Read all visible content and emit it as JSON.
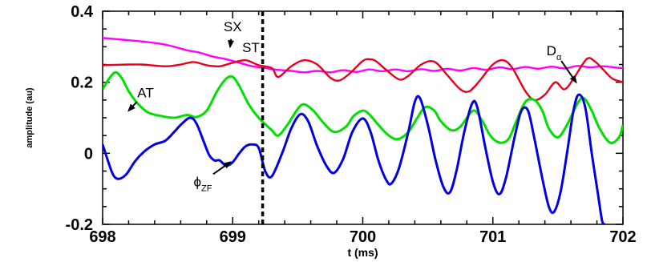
{
  "chart_data": {
    "type": "line",
    "xlabel": "t (ms)",
    "ylabel": "amplitude (au)",
    "xlim": [
      698,
      702
    ],
    "ylim": [
      -0.2,
      0.4
    ],
    "x_ticks": [
      698,
      699,
      700,
      701,
      702
    ],
    "y_ticks": [
      -0.2,
      0,
      0.2,
      0.4
    ],
    "x_tick_labels": [
      "698",
      "699",
      "700",
      "701",
      "702"
    ],
    "y_tick_labels": [
      "-0.2",
      "0",
      "0.2",
      "0.4"
    ],
    "grid": false,
    "legend": "none",
    "series": [
      {
        "id": "sx",
        "color": "#ff00ff",
        "points": [
          [
            698.0,
            0.325
          ],
          [
            698.15,
            0.32
          ],
          [
            698.3,
            0.315
          ],
          [
            698.45,
            0.308
          ],
          [
            698.55,
            0.3
          ],
          [
            698.65,
            0.29
          ],
          [
            698.75,
            0.283
          ],
          [
            698.85,
            0.272
          ],
          [
            698.95,
            0.265
          ],
          [
            699.05,
            0.255
          ],
          [
            699.15,
            0.245
          ],
          [
            699.25,
            0.24
          ],
          [
            699.35,
            0.235
          ],
          [
            699.45,
            0.232
          ],
          [
            699.55,
            0.228
          ],
          [
            699.65,
            0.232
          ],
          [
            699.75,
            0.228
          ],
          [
            699.85,
            0.234
          ],
          [
            699.95,
            0.229
          ],
          [
            700.05,
            0.236
          ],
          [
            700.15,
            0.231
          ],
          [
            700.25,
            0.236
          ],
          [
            700.35,
            0.231
          ],
          [
            700.45,
            0.237
          ],
          [
            700.55,
            0.232
          ],
          [
            700.65,
            0.238
          ],
          [
            700.75,
            0.233
          ],
          [
            700.85,
            0.24
          ],
          [
            700.95,
            0.235
          ],
          [
            701.05,
            0.242
          ],
          [
            701.15,
            0.237
          ],
          [
            701.25,
            0.243
          ],
          [
            701.35,
            0.238
          ],
          [
            701.45,
            0.244
          ],
          [
            701.55,
            0.239
          ],
          [
            701.65,
            0.246
          ],
          [
            701.75,
            0.242
          ],
          [
            701.85,
            0.245
          ],
          [
            701.95,
            0.241
          ],
          [
            702.0,
            0.24
          ]
        ]
      },
      {
        "id": "d_alpha",
        "color": "#e8001c",
        "points": [
          [
            698.0,
            0.248
          ],
          [
            698.1,
            0.249
          ],
          [
            698.2,
            0.25
          ],
          [
            698.3,
            0.25
          ],
          [
            698.4,
            0.247
          ],
          [
            698.5,
            0.245
          ],
          [
            698.6,
            0.25
          ],
          [
            698.7,
            0.257
          ],
          [
            698.8,
            0.248
          ],
          [
            698.9,
            0.245
          ],
          [
            699.0,
            0.255
          ],
          [
            699.1,
            0.262
          ],
          [
            699.2,
            0.248
          ],
          [
            699.3,
            0.24
          ],
          [
            699.35,
            0.215
          ],
          [
            699.45,
            0.245
          ],
          [
            699.55,
            0.262
          ],
          [
            699.65,
            0.25
          ],
          [
            699.75,
            0.213
          ],
          [
            699.82,
            0.205
          ],
          [
            699.9,
            0.225
          ],
          [
            700.0,
            0.26
          ],
          [
            700.05,
            0.265
          ],
          [
            700.1,
            0.26
          ],
          [
            700.18,
            0.235
          ],
          [
            700.28,
            0.208
          ],
          [
            700.35,
            0.218
          ],
          [
            700.45,
            0.25
          ],
          [
            700.55,
            0.258
          ],
          [
            700.65,
            0.22
          ],
          [
            700.75,
            0.18
          ],
          [
            700.82,
            0.175
          ],
          [
            700.9,
            0.205
          ],
          [
            701.0,
            0.25
          ],
          [
            701.08,
            0.262
          ],
          [
            701.15,
            0.24
          ],
          [
            701.25,
            0.175
          ],
          [
            701.32,
            0.15
          ],
          [
            701.4,
            0.165
          ],
          [
            701.48,
            0.2
          ],
          [
            701.55,
            0.18
          ],
          [
            701.62,
            0.21
          ],
          [
            701.72,
            0.265
          ],
          [
            701.78,
            0.26
          ],
          [
            701.85,
            0.235
          ],
          [
            701.92,
            0.21
          ],
          [
            702.0,
            0.2
          ]
        ]
      },
      {
        "id": "at",
        "color": "#00e000",
        "points": [
          [
            698.0,
            0.18
          ],
          [
            698.05,
            0.21
          ],
          [
            698.1,
            0.228
          ],
          [
            698.15,
            0.21
          ],
          [
            698.2,
            0.175
          ],
          [
            698.27,
            0.14
          ],
          [
            698.35,
            0.115
          ],
          [
            698.45,
            0.105
          ],
          [
            698.55,
            0.1
          ],
          [
            698.65,
            0.108
          ],
          [
            698.72,
            0.102
          ],
          [
            698.8,
            0.12
          ],
          [
            698.88,
            0.175
          ],
          [
            698.95,
            0.21
          ],
          [
            699.0,
            0.215
          ],
          [
            699.05,
            0.19
          ],
          [
            699.12,
            0.14
          ],
          [
            699.2,
            0.1
          ],
          [
            699.3,
            0.065
          ],
          [
            699.35,
            0.05
          ],
          [
            699.42,
            0.08
          ],
          [
            699.5,
            0.125
          ],
          [
            699.55,
            0.138
          ],
          [
            699.62,
            0.12
          ],
          [
            699.7,
            0.085
          ],
          [
            699.78,
            0.06
          ],
          [
            699.87,
            0.075
          ],
          [
            699.93,
            0.105
          ],
          [
            700.0,
            0.12
          ],
          [
            700.05,
            0.11
          ],
          [
            700.12,
            0.08
          ],
          [
            700.2,
            0.05
          ],
          [
            700.27,
            0.04
          ],
          [
            700.35,
            0.06
          ],
          [
            700.42,
            0.1
          ],
          [
            700.48,
            0.13
          ],
          [
            700.55,
            0.12
          ],
          [
            700.6,
            0.09
          ],
          [
            700.68,
            0.065
          ],
          [
            700.75,
            0.075
          ],
          [
            700.85,
            0.12
          ],
          [
            700.92,
            0.09
          ],
          [
            700.98,
            0.05
          ],
          [
            701.05,
            0.03
          ],
          [
            701.12,
            0.04
          ],
          [
            701.18,
            0.09
          ],
          [
            701.25,
            0.145
          ],
          [
            701.32,
            0.15
          ],
          [
            701.38,
            0.12
          ],
          [
            701.43,
            0.07
          ],
          [
            701.5,
            0.045
          ],
          [
            701.57,
            0.08
          ],
          [
            701.65,
            0.14
          ],
          [
            701.7,
            0.155
          ],
          [
            701.76,
            0.12
          ],
          [
            701.82,
            0.07
          ],
          [
            701.9,
            0.03
          ],
          [
            701.97,
            0.045
          ],
          [
            702.0,
            0.08
          ]
        ]
      },
      {
        "id": "phi_zf",
        "color": "#0000e0",
        "points": [
          [
            698.0,
            0.025
          ],
          [
            698.04,
            -0.02
          ],
          [
            698.08,
            -0.06
          ],
          [
            698.12,
            -0.072
          ],
          [
            698.18,
            -0.06
          ],
          [
            698.25,
            -0.022
          ],
          [
            698.32,
            0.005
          ],
          [
            698.4,
            0.025
          ],
          [
            698.48,
            0.035
          ],
          [
            698.55,
            0.06
          ],
          [
            698.6,
            0.08
          ],
          [
            698.67,
            0.1
          ],
          [
            698.72,
            0.085
          ],
          [
            698.78,
            0.03
          ],
          [
            698.82,
            -0.005
          ],
          [
            698.86,
            -0.02
          ],
          [
            698.9,
            -0.02
          ],
          [
            698.95,
            -0.035
          ],
          [
            699.0,
            -0.025
          ],
          [
            699.05,
            0.0
          ],
          [
            699.1,
            0.02
          ],
          [
            699.15,
            0.025
          ],
          [
            699.2,
            0.015
          ],
          [
            699.25,
            -0.05
          ],
          [
            699.3,
            -0.065
          ],
          [
            699.38,
            0.0
          ],
          [
            699.45,
            0.07
          ],
          [
            699.52,
            0.11
          ],
          [
            699.58,
            0.09
          ],
          [
            699.65,
            0.02
          ],
          [
            699.72,
            -0.035
          ],
          [
            699.78,
            -0.055
          ],
          [
            699.85,
            -0.015
          ],
          [
            699.92,
            0.06
          ],
          [
            700.0,
            0.098
          ],
          [
            700.06,
            0.06
          ],
          [
            700.12,
            -0.02
          ],
          [
            700.18,
            -0.075
          ],
          [
            700.22,
            -0.085
          ],
          [
            700.28,
            -0.04
          ],
          [
            700.35,
            0.06
          ],
          [
            700.4,
            0.145
          ],
          [
            700.44,
            0.155
          ],
          [
            700.5,
            0.08
          ],
          [
            700.56,
            -0.02
          ],
          [
            700.62,
            -0.095
          ],
          [
            700.67,
            -0.11
          ],
          [
            700.72,
            -0.05
          ],
          [
            700.78,
            0.06
          ],
          [
            700.84,
            0.14
          ],
          [
            700.88,
            0.13
          ],
          [
            700.94,
            0.02
          ],
          [
            701.0,
            -0.08
          ],
          [
            701.05,
            -0.115
          ],
          [
            701.1,
            -0.07
          ],
          [
            701.17,
            0.05
          ],
          [
            701.22,
            0.12
          ],
          [
            701.27,
            0.12
          ],
          [
            701.32,
            0.04
          ],
          [
            701.38,
            -0.07
          ],
          [
            701.43,
            -0.15
          ],
          [
            701.47,
            -0.165
          ],
          [
            701.52,
            -0.11
          ],
          [
            701.57,
            0.0
          ],
          [
            701.62,
            0.12
          ],
          [
            701.66,
            0.165
          ],
          [
            701.71,
            0.13
          ],
          [
            701.76,
            0.0
          ],
          [
            701.81,
            -0.12
          ],
          [
            701.84,
            -0.19
          ],
          [
            701.86,
            -0.2
          ]
        ]
      }
    ],
    "vertical_marker": {
      "x": 699.23,
      "style": "dashed",
      "color": "#000000"
    },
    "annotations": {
      "sx": {
        "text": "SX",
        "label_at": [
          699.0,
          0.344
        ],
        "arrow_to": [
          698.98,
          0.3
        ]
      },
      "st": {
        "text": "ST",
        "label_at": [
          699.14,
          0.285
        ]
      },
      "d_alpha": {
        "text": "D",
        "sub": "α",
        "label_at": [
          701.47,
          0.276
        ],
        "arrow_to": [
          701.64,
          0.2
        ]
      },
      "at": {
        "text": "AT",
        "label_at": [
          698.33,
          0.158
        ],
        "arrow_to": [
          698.2,
          0.12
        ]
      },
      "phi_zf": {
        "text": "ϕ",
        "sub": "ZF",
        "label_at": [
          698.77,
          -0.093
        ],
        "arrow_to": [
          698.98,
          -0.025
        ]
      }
    }
  }
}
